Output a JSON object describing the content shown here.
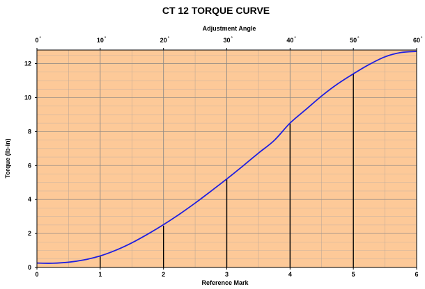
{
  "chart_data": {
    "type": "line",
    "title": "CT 12 TORQUE CURVE",
    "xlabel": "Reference Mark",
    "ylabel": "Torque (lb-in)",
    "x2label": "Adjustment Angle",
    "xlim": [
      0,
      6
    ],
    "ylim": [
      0,
      12.8
    ],
    "x_ticks": [
      0,
      1,
      2,
      3,
      4,
      5,
      6
    ],
    "y_ticks": [
      0,
      2,
      4,
      6,
      8,
      10,
      12
    ],
    "x2_ticks": [
      0,
      10,
      20,
      30,
      40,
      50,
      60
    ],
    "x2_tick_suffix": "°",
    "grid": true,
    "background_color": "#fdc998",
    "line_color": "#1f1fe0",
    "series": [
      {
        "x": [
          0,
          0.25,
          0.5,
          0.75,
          1,
          1.25,
          1.5,
          1.75,
          2,
          2.25,
          2.5,
          2.75,
          3,
          3.25,
          3.5,
          3.75,
          4,
          4.25,
          4.5,
          4.75,
          5,
          5.25,
          5.5,
          5.75,
          6
        ],
        "y": [
          0.26,
          0.25,
          0.31,
          0.45,
          0.68,
          1.02,
          1.45,
          1.96,
          2.52,
          3.13,
          3.79,
          4.49,
          5.21,
          5.96,
          6.73,
          7.48,
          8.5,
          9.3,
          10.1,
          10.8,
          11.4,
          11.95,
          12.4,
          12.65,
          12.72
        ]
      }
    ],
    "reference_lines": [
      {
        "x": 1,
        "y": 0.68
      },
      {
        "x": 2,
        "y": 2.45
      },
      {
        "x": 3,
        "y": 5.2
      },
      {
        "x": 4,
        "y": 8.5
      },
      {
        "x": 5,
        "y": 11.4
      }
    ]
  }
}
